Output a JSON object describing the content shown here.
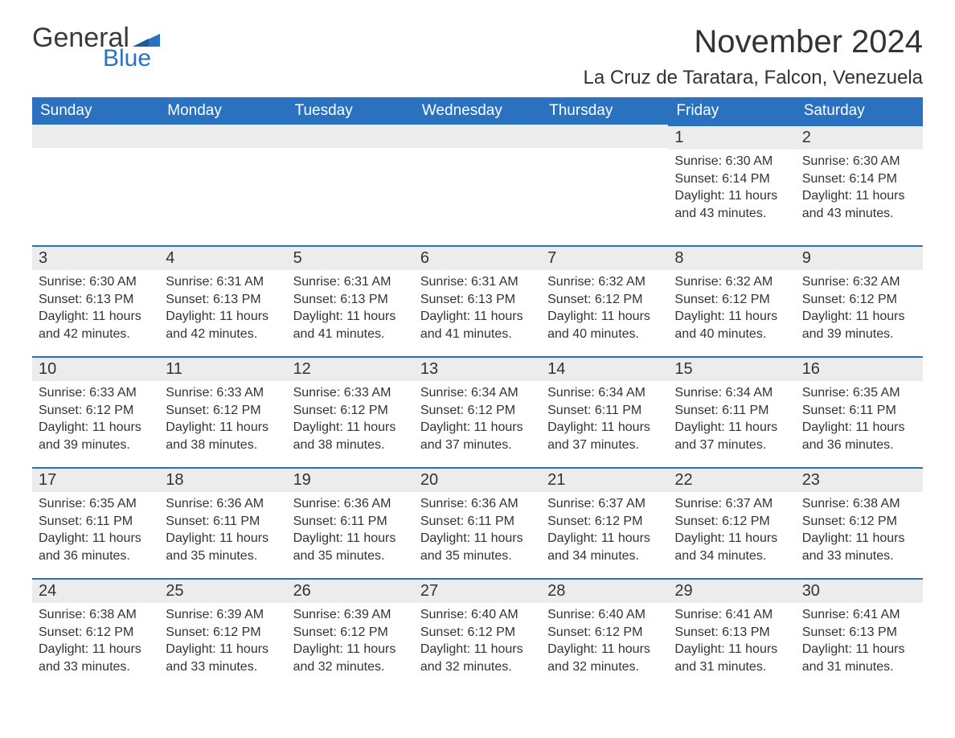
{
  "logo": {
    "general": "General",
    "blue": "Blue"
  },
  "title": "November 2024",
  "location": "La Cruz de Taratara, Falcon, Venezuela",
  "dayHeaders": [
    "Sunday",
    "Monday",
    "Tuesday",
    "Wednesday",
    "Thursday",
    "Friday",
    "Saturday"
  ],
  "style": {
    "header_bg": "#2a72c0",
    "header_text": "#ffffff",
    "daynum_bg": "#ececec",
    "daynum_border": "#2a72c0",
    "body_text": "#333333",
    "logo_gray": "#3a3a3a",
    "logo_blue": "#2a72c0",
    "page_bg": "#ffffff",
    "title_fontsize": 40,
    "location_fontsize": 24,
    "header_fontsize": 19,
    "daynum_fontsize": 20,
    "body_fontsize": 16
  },
  "weeks": [
    [
      {},
      {},
      {},
      {},
      {},
      {
        "n": "1",
        "sr": "Sunrise: 6:30 AM",
        "ss": "Sunset: 6:14 PM",
        "d1": "Daylight: 11 hours",
        "d2": "and 43 minutes."
      },
      {
        "n": "2",
        "sr": "Sunrise: 6:30 AM",
        "ss": "Sunset: 6:14 PM",
        "d1": "Daylight: 11 hours",
        "d2": "and 43 minutes."
      }
    ],
    [
      {
        "n": "3",
        "sr": "Sunrise: 6:30 AM",
        "ss": "Sunset: 6:13 PM",
        "d1": "Daylight: 11 hours",
        "d2": "and 42 minutes."
      },
      {
        "n": "4",
        "sr": "Sunrise: 6:31 AM",
        "ss": "Sunset: 6:13 PM",
        "d1": "Daylight: 11 hours",
        "d2": "and 42 minutes."
      },
      {
        "n": "5",
        "sr": "Sunrise: 6:31 AM",
        "ss": "Sunset: 6:13 PM",
        "d1": "Daylight: 11 hours",
        "d2": "and 41 minutes."
      },
      {
        "n": "6",
        "sr": "Sunrise: 6:31 AM",
        "ss": "Sunset: 6:13 PM",
        "d1": "Daylight: 11 hours",
        "d2": "and 41 minutes."
      },
      {
        "n": "7",
        "sr": "Sunrise: 6:32 AM",
        "ss": "Sunset: 6:12 PM",
        "d1": "Daylight: 11 hours",
        "d2": "and 40 minutes."
      },
      {
        "n": "8",
        "sr": "Sunrise: 6:32 AM",
        "ss": "Sunset: 6:12 PM",
        "d1": "Daylight: 11 hours",
        "d2": "and 40 minutes."
      },
      {
        "n": "9",
        "sr": "Sunrise: 6:32 AM",
        "ss": "Sunset: 6:12 PM",
        "d1": "Daylight: 11 hours",
        "d2": "and 39 minutes."
      }
    ],
    [
      {
        "n": "10",
        "sr": "Sunrise: 6:33 AM",
        "ss": "Sunset: 6:12 PM",
        "d1": "Daylight: 11 hours",
        "d2": "and 39 minutes."
      },
      {
        "n": "11",
        "sr": "Sunrise: 6:33 AM",
        "ss": "Sunset: 6:12 PM",
        "d1": "Daylight: 11 hours",
        "d2": "and 38 minutes."
      },
      {
        "n": "12",
        "sr": "Sunrise: 6:33 AM",
        "ss": "Sunset: 6:12 PM",
        "d1": "Daylight: 11 hours",
        "d2": "and 38 minutes."
      },
      {
        "n": "13",
        "sr": "Sunrise: 6:34 AM",
        "ss": "Sunset: 6:12 PM",
        "d1": "Daylight: 11 hours",
        "d2": "and 37 minutes."
      },
      {
        "n": "14",
        "sr": "Sunrise: 6:34 AM",
        "ss": "Sunset: 6:11 PM",
        "d1": "Daylight: 11 hours",
        "d2": "and 37 minutes."
      },
      {
        "n": "15",
        "sr": "Sunrise: 6:34 AM",
        "ss": "Sunset: 6:11 PM",
        "d1": "Daylight: 11 hours",
        "d2": "and 37 minutes."
      },
      {
        "n": "16",
        "sr": "Sunrise: 6:35 AM",
        "ss": "Sunset: 6:11 PM",
        "d1": "Daylight: 11 hours",
        "d2": "and 36 minutes."
      }
    ],
    [
      {
        "n": "17",
        "sr": "Sunrise: 6:35 AM",
        "ss": "Sunset: 6:11 PM",
        "d1": "Daylight: 11 hours",
        "d2": "and 36 minutes."
      },
      {
        "n": "18",
        "sr": "Sunrise: 6:36 AM",
        "ss": "Sunset: 6:11 PM",
        "d1": "Daylight: 11 hours",
        "d2": "and 35 minutes."
      },
      {
        "n": "19",
        "sr": "Sunrise: 6:36 AM",
        "ss": "Sunset: 6:11 PM",
        "d1": "Daylight: 11 hours",
        "d2": "and 35 minutes."
      },
      {
        "n": "20",
        "sr": "Sunrise: 6:36 AM",
        "ss": "Sunset: 6:11 PM",
        "d1": "Daylight: 11 hours",
        "d2": "and 35 minutes."
      },
      {
        "n": "21",
        "sr": "Sunrise: 6:37 AM",
        "ss": "Sunset: 6:12 PM",
        "d1": "Daylight: 11 hours",
        "d2": "and 34 minutes."
      },
      {
        "n": "22",
        "sr": "Sunrise: 6:37 AM",
        "ss": "Sunset: 6:12 PM",
        "d1": "Daylight: 11 hours",
        "d2": "and 34 minutes."
      },
      {
        "n": "23",
        "sr": "Sunrise: 6:38 AM",
        "ss": "Sunset: 6:12 PM",
        "d1": "Daylight: 11 hours",
        "d2": "and 33 minutes."
      }
    ],
    [
      {
        "n": "24",
        "sr": "Sunrise: 6:38 AM",
        "ss": "Sunset: 6:12 PM",
        "d1": "Daylight: 11 hours",
        "d2": "and 33 minutes."
      },
      {
        "n": "25",
        "sr": "Sunrise: 6:39 AM",
        "ss": "Sunset: 6:12 PM",
        "d1": "Daylight: 11 hours",
        "d2": "and 33 minutes."
      },
      {
        "n": "26",
        "sr": "Sunrise: 6:39 AM",
        "ss": "Sunset: 6:12 PM",
        "d1": "Daylight: 11 hours",
        "d2": "and 32 minutes."
      },
      {
        "n": "27",
        "sr": "Sunrise: 6:40 AM",
        "ss": "Sunset: 6:12 PM",
        "d1": "Daylight: 11 hours",
        "d2": "and 32 minutes."
      },
      {
        "n": "28",
        "sr": "Sunrise: 6:40 AM",
        "ss": "Sunset: 6:12 PM",
        "d1": "Daylight: 11 hours",
        "d2": "and 32 minutes."
      },
      {
        "n": "29",
        "sr": "Sunrise: 6:41 AM",
        "ss": "Sunset: 6:13 PM",
        "d1": "Daylight: 11 hours",
        "d2": "and 31 minutes."
      },
      {
        "n": "30",
        "sr": "Sunrise: 6:41 AM",
        "ss": "Sunset: 6:13 PM",
        "d1": "Daylight: 11 hours",
        "d2": "and 31 minutes."
      }
    ]
  ]
}
